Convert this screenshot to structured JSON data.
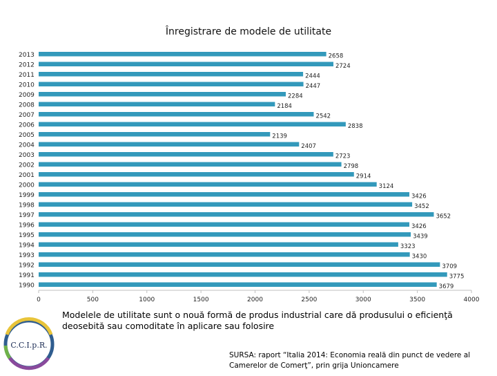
{
  "chart_data": {
    "type": "bar",
    "orientation": "horizontal",
    "title": "Înregistrare de modele de utilitate",
    "categories": [
      "2013",
      "2012",
      "2011",
      "2010",
      "2009",
      "2008",
      "2007",
      "2006",
      "2005",
      "2004",
      "2003",
      "2002",
      "2001",
      "2000",
      "1999",
      "1998",
      "1997",
      "1996",
      "1995",
      "1994",
      "1993",
      "1992",
      "1991",
      "1990"
    ],
    "values": [
      2658,
      2724,
      2444,
      2447,
      2284,
      2184,
      2542,
      2838,
      2139,
      2407,
      2723,
      2798,
      2914,
      3124,
      3426,
      3452,
      3652,
      3426,
      3439,
      3323,
      3430,
      3709,
      3775,
      3679
    ],
    "data_labels": [
      "2658",
      "2724",
      "2444",
      "2447",
      "2284",
      "2184",
      "2542",
      "2838",
      "2139",
      "2407",
      "2723",
      "2798",
      "2914",
      "3124",
      "3426",
      "3452",
      "3652",
      "3426",
      "3439",
      "3323",
      "3430",
      "3709",
      "3775",
      "3679"
    ],
    "xlim": [
      0,
      4000
    ],
    "xticks": [
      "0",
      "500",
      "1000",
      "1500",
      "2000",
      "2500",
      "3000",
      "3500",
      "4000"
    ],
    "xlabel": "",
    "ylabel": "",
    "legend": "none",
    "grid": false,
    "bar_color": "#3399bb"
  },
  "caption": "Modelele de utilitate sunt o nouă formă de produs industrial care dă produsului o eficienţă deosebită sau comoditate în aplicare sau folosire",
  "source": "SURSA: raport “Italia 2014: Economia reală din punct de vedere al Camerelor de Comerţ”, prin grija Unioncamere",
  "logo": {
    "text": "C.C.I.p.R.",
    "icon": "cciipr-logo-icon"
  }
}
